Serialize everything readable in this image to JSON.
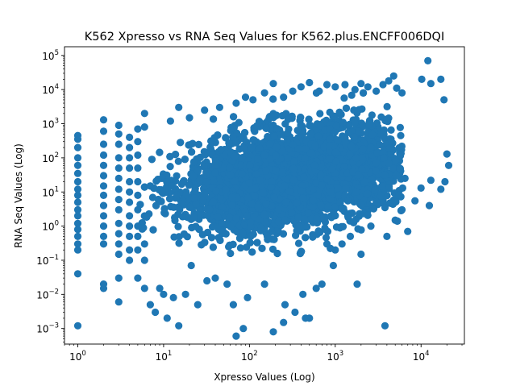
{
  "chart_data": {
    "type": "scatter",
    "title": "K562 Xpresso vs RNA Seq Values for K562.plus.ENCFF006DQI",
    "xlabel": "Xpresso Values (Log)",
    "ylabel": "RNA Seq Values (Log)",
    "x_scale": "log",
    "y_scale": "log",
    "xlim": [
      0.7,
      32000
    ],
    "ylim": [
      0.00035,
      180000
    ],
    "x_ticks": [
      {
        "value": 1,
        "base": "10",
        "exp": "0"
      },
      {
        "value": 10,
        "base": "10",
        "exp": "1"
      },
      {
        "value": 100,
        "base": "10",
        "exp": "2"
      },
      {
        "value": 1000,
        "base": "10",
        "exp": "3"
      },
      {
        "value": 10000,
        "base": "10",
        "exp": "4"
      }
    ],
    "y_ticks": [
      {
        "value": 0.001,
        "base": "10",
        "exp": "−3"
      },
      {
        "value": 0.01,
        "base": "10",
        "exp": "−2"
      },
      {
        "value": 0.1,
        "base": "10",
        "exp": "−1"
      },
      {
        "value": 1,
        "base": "10",
        "exp": "0"
      },
      {
        "value": 10,
        "base": "10",
        "exp": "1"
      },
      {
        "value": 100,
        "base": "10",
        "exp": "2"
      },
      {
        "value": 1000,
        "base": "10",
        "exp": "3"
      },
      {
        "value": 10000,
        "base": "10",
        "exp": "4"
      },
      {
        "value": 100000,
        "base": "10",
        "exp": "5"
      }
    ],
    "grid": false,
    "legend": "none",
    "marker_color": "#1f77b4",
    "series": [
      {
        "points": [
          [
            1,
            0.0012
          ],
          [
            1,
            0.04
          ],
          [
            1,
            0.2
          ],
          [
            1,
            0.3
          ],
          [
            1,
            0.5
          ],
          [
            1,
            0.8
          ],
          [
            1,
            1.2
          ],
          [
            1,
            2
          ],
          [
            1,
            3
          ],
          [
            1,
            5
          ],
          [
            1,
            8
          ],
          [
            1,
            12
          ],
          [
            1,
            20
          ],
          [
            1,
            35
          ],
          [
            1,
            60
          ],
          [
            1,
            100
          ],
          [
            1,
            200
          ],
          [
            1,
            350
          ],
          [
            1,
            450
          ],
          [
            2,
            0.015
          ],
          [
            2,
            0.02
          ],
          [
            2,
            0.3
          ],
          [
            2,
            0.5
          ],
          [
            2,
            1
          ],
          [
            2,
            2
          ],
          [
            2,
            4
          ],
          [
            2,
            8
          ],
          [
            2,
            15
          ],
          [
            2,
            30
          ],
          [
            2,
            60
          ],
          [
            2,
            120
          ],
          [
            2,
            250
          ],
          [
            2,
            600
          ],
          [
            2,
            1300
          ],
          [
            3,
            0.006
          ],
          [
            3,
            0.03
          ],
          [
            3,
            0.15
          ],
          [
            3,
            0.3
          ],
          [
            3,
            0.6
          ],
          [
            3,
            1.2
          ],
          [
            3,
            3
          ],
          [
            3,
            6
          ],
          [
            3,
            12
          ],
          [
            3,
            25
          ],
          [
            3,
            50
          ],
          [
            3,
            100
          ],
          [
            3,
            250
          ],
          [
            3,
            500
          ],
          [
            3,
            900
          ],
          [
            4,
            0.1
          ],
          [
            4,
            0.2
          ],
          [
            4,
            0.5
          ],
          [
            4,
            1
          ],
          [
            4,
            2
          ],
          [
            4,
            5
          ],
          [
            4,
            10
          ],
          [
            4,
            20
          ],
          [
            4,
            50
          ],
          [
            4,
            100
          ],
          [
            4,
            200
          ],
          [
            4,
            400
          ],
          [
            5,
            0.03
          ],
          [
            5,
            0.2
          ],
          [
            5,
            0.5
          ],
          [
            5,
            1
          ],
          [
            5,
            3
          ],
          [
            5,
            8
          ],
          [
            5,
            20
          ],
          [
            5,
            50
          ],
          [
            5,
            120
          ],
          [
            5,
            300
          ],
          [
            5,
            700
          ],
          [
            6,
            0.015
          ],
          [
            6,
            0.1
          ],
          [
            6,
            0.3
          ],
          [
            6,
            2000
          ],
          [
            6,
            800
          ],
          [
            7,
            0.005
          ],
          [
            8,
            0.003
          ],
          [
            9,
            0.015
          ],
          [
            10,
            0.01
          ],
          [
            11,
            0.002
          ],
          [
            13,
            0.008
          ],
          [
            15,
            0.0012
          ],
          [
            18,
            0.01
          ],
          [
            21,
            0.07
          ],
          [
            25,
            0.005
          ],
          [
            32,
            0.025
          ],
          [
            40,
            0.03
          ],
          [
            55,
            0.02
          ],
          [
            65,
            0.005
          ],
          [
            70,
            0.0006
          ],
          [
            85,
            0.001
          ],
          [
            95,
            0.008
          ],
          [
            150,
            0.02
          ],
          [
            190,
            0.0008
          ],
          [
            250,
            0.0015
          ],
          [
            260,
            0.005
          ],
          [
            340,
            0.003
          ],
          [
            420,
            0.01
          ],
          [
            450,
            0.002
          ],
          [
            500,
            0.002
          ],
          [
            600,
            0.015
          ],
          [
            700,
            0.02
          ],
          [
            1800,
            0.02
          ],
          [
            3800,
            0.0012
          ],
          [
            12,
            1200
          ],
          [
            15,
            3000
          ],
          [
            20,
            1500
          ],
          [
            30,
            2500
          ],
          [
            45,
            3000
          ],
          [
            70,
            4000
          ],
          [
            90,
            6000
          ],
          [
            110,
            5000
          ],
          [
            150,
            8000
          ],
          [
            190,
            15000
          ],
          [
            250,
            6000
          ],
          [
            320,
            9000
          ],
          [
            400,
            12000
          ],
          [
            500,
            16000
          ],
          [
            650,
            9000
          ],
          [
            800,
            14000
          ],
          [
            1000,
            12000
          ],
          [
            1300,
            14000
          ],
          [
            1700,
            10000
          ],
          [
            2000,
            15000
          ],
          [
            2400,
            12000
          ],
          [
            3000,
            9000
          ],
          [
            3600,
            14000
          ],
          [
            4200,
            18000
          ],
          [
            4800,
            25000
          ],
          [
            5200,
            11000
          ],
          [
            6000,
            8000
          ],
          [
            10200,
            20000
          ],
          [
            12000,
            70000
          ],
          [
            13000,
            15000
          ],
          [
            17000,
            20000
          ],
          [
            18500,
            5000
          ],
          [
            20000,
            130
          ],
          [
            21000,
            60
          ],
          [
            19000,
            20
          ],
          [
            17000,
            12
          ],
          [
            13000,
            22
          ],
          [
            12500,
            4
          ],
          [
            10000,
            13
          ],
          [
            8500,
            5.5
          ],
          [
            7000,
            0.7
          ],
          [
            6000,
            3
          ],
          [
            5500,
            8
          ],
          [
            5000,
            1.5
          ],
          [
            4000,
            0.5
          ],
          [
            3800,
            3.5
          ],
          [
            3500,
            15
          ],
          [
            3000,
            5
          ],
          [
            2600,
            1
          ],
          [
            2000,
            0.15
          ],
          [
            1500,
            0.5
          ],
          [
            1400,
            2
          ],
          [
            1200,
            0.3
          ],
          [
            1000,
            0.2
          ],
          [
            950,
            0.07
          ],
          [
            800,
            0.3
          ],
          [
            6500,
            25
          ],
          [
            6100,
            13
          ],
          [
            5200,
            30
          ],
          [
            4700,
            50
          ],
          [
            4200,
            70
          ],
          [
            3700,
            100
          ],
          [
            3100,
            140
          ],
          [
            2600,
            200
          ]
        ]
      }
    ],
    "dense_cloud": {
      "x_range": [
        5,
        6000
      ],
      "x_center": 350,
      "log_x_sd": 0.65,
      "y_center_at_x1": 3,
      "y_log_slope": 0.38,
      "log_y_sd": 0.72,
      "count": 5200
    }
  }
}
